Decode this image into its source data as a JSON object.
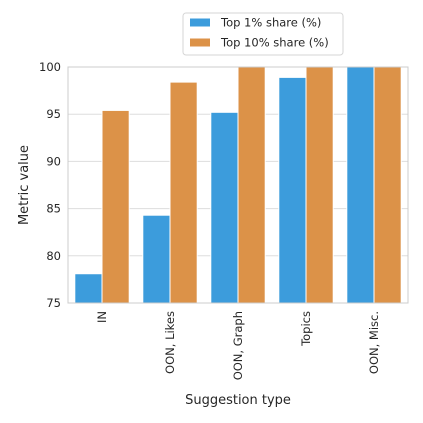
{
  "chart_data": {
    "type": "bar",
    "xlabel": "Suggestion type",
    "ylabel": "Metric value",
    "categories": [
      "IN",
      "OON, Likes",
      "OON, Graph",
      "Topics",
      "OON, Misc."
    ],
    "series": [
      {
        "name": "Top 1% share (%)",
        "color": "#3c9cdc",
        "values": [
          78.1,
          84.3,
          95.2,
          98.9,
          100.0
        ]
      },
      {
        "name": "Top 10% share (%)",
        "color": "#dc9248",
        "values": [
          95.4,
          98.4,
          100.0,
          100.0,
          100.0
        ]
      }
    ],
    "ylim": [
      75,
      100
    ],
    "yticks": [
      75,
      80,
      85,
      90,
      95,
      100
    ],
    "grid": true,
    "legend_position": "top-center"
  }
}
